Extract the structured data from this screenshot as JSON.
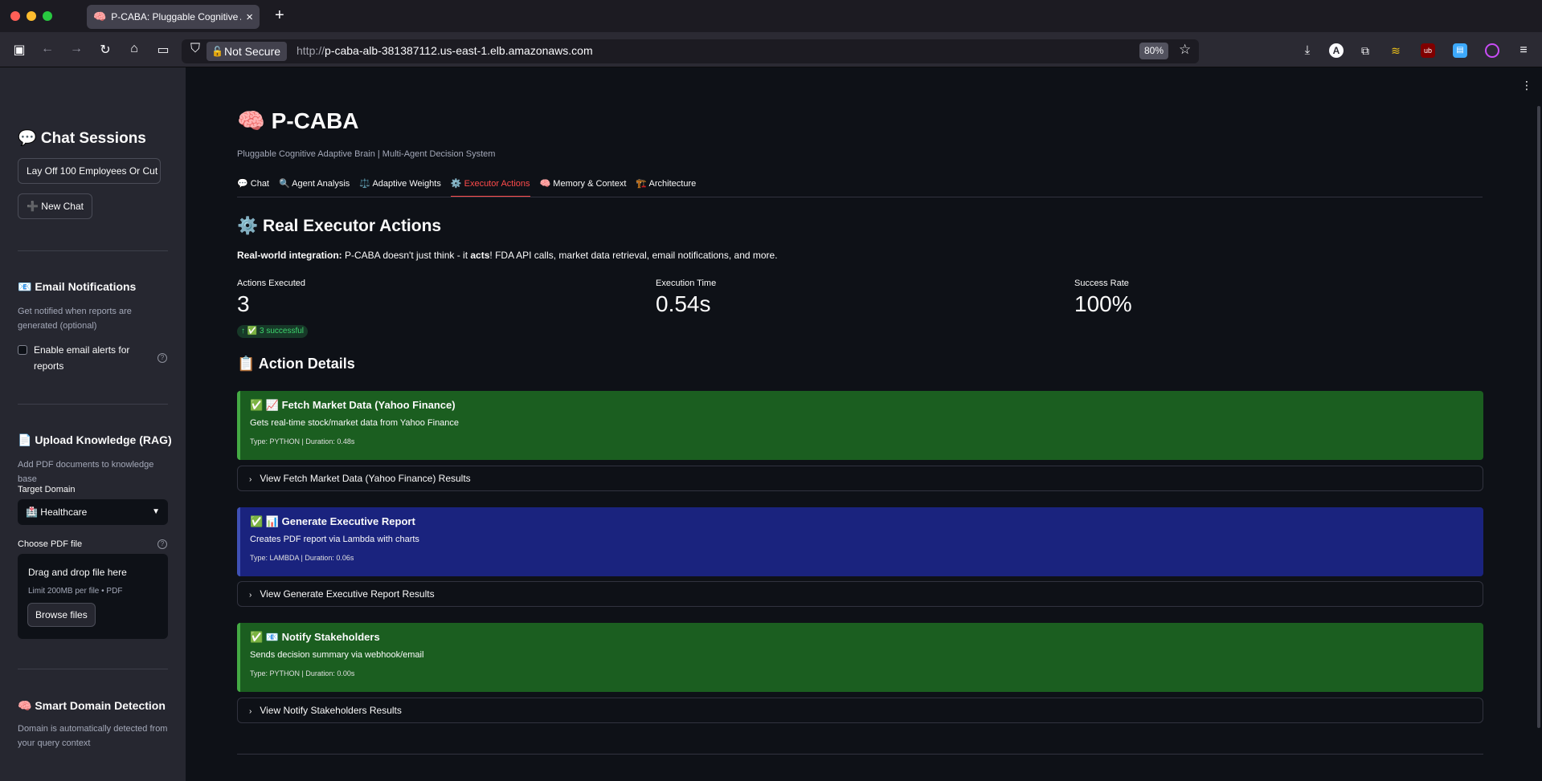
{
  "browser": {
    "tab_title": "P-CABA: Pluggable Cognitive Ad",
    "tab_favicon": "🧠",
    "security_label": "Not Secure",
    "url_protocol": "http://",
    "url_host": "p-caba-alb-381387112.us-east-1.elb.amazonaws.com",
    "zoom": "80%"
  },
  "sidebar": {
    "chat_sessions_title": "💬 Chat Sessions",
    "session_item": "Lay Off 100 Employees Or Cut",
    "new_chat": "➕ New Chat",
    "email": {
      "title": "📧 Email Notifications",
      "caption": "Get notified when reports are generated (optional)",
      "checkbox_label": "Enable email alerts for reports"
    },
    "upload": {
      "title": "📄 Upload Knowledge (RAG)",
      "caption": "Add PDF documents to knowledge base",
      "target_label": "Target Domain",
      "target_value": "🏥 Healthcare",
      "choose_label": "Choose PDF file",
      "drop_title": "Drag and drop file here",
      "drop_limit": "Limit 200MB per file • PDF",
      "browse": "Browse files"
    },
    "smart": {
      "title": "🧠 Smart Domain Detection",
      "caption": "Domain is automatically detected from your query context"
    }
  },
  "main": {
    "title": "🧠 P-CABA",
    "subtitle": "Pluggable Cognitive Adaptive Brain | Multi-Agent Decision System",
    "tabs": [
      {
        "label": "💬 Chat"
      },
      {
        "label": "🔍 Agent Analysis"
      },
      {
        "label": "⚖️ Adaptive Weights"
      },
      {
        "label": "⚙️ Executor Actions"
      },
      {
        "label": "🧠 Memory & Context"
      },
      {
        "label": "🏗️ Architecture"
      }
    ],
    "active_tab": 3,
    "section_title": "⚙️ Real Executor Actions",
    "intro_bold": "Real-world integration:",
    "intro_a": " P-CABA doesn't just think - it ",
    "intro_acts": "acts",
    "intro_b": "! FDA API calls, market data retrieval, email notifications, and more.",
    "metrics": [
      {
        "label": "Actions Executed",
        "value": "3"
      },
      {
        "label": "Execution Time",
        "value": "0.54s"
      },
      {
        "label": "Success Rate",
        "value": "100%"
      }
    ],
    "delta": "↑ ✅ 3 successful",
    "details_title": "📋 Action Details",
    "actions": [
      {
        "title": "✅ 📈 Fetch Market Data (Yahoo Finance)",
        "desc": "Gets real-time stock/market data from Yahoo Finance",
        "meta": "Type: PYTHON | Duration: 0.48s",
        "expander": "View Fetch Market Data (Yahoo Finance) Results",
        "color": "#1b5e20"
      },
      {
        "title": "✅ 📊 Generate Executive Report",
        "desc": "Creates PDF report via Lambda with charts",
        "meta": "Type: LAMBDA | Duration: 0.06s",
        "expander": "View Generate Executive Report Results",
        "color": "#1a237e"
      },
      {
        "title": "✅ 📧 Notify Stakeholders",
        "desc": "Sends decision summary via webhook/email",
        "meta": "Type: PYTHON | Duration: 0.00s",
        "expander": "View Notify Stakeholders Results",
        "color": "#1b5e20"
      }
    ]
  }
}
